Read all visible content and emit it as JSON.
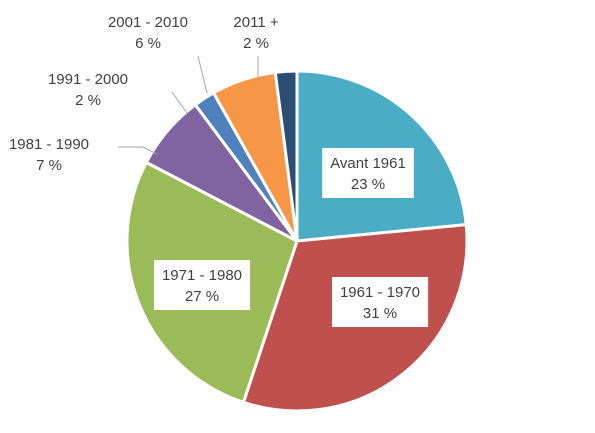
{
  "chart_data": {
    "type": "pie",
    "title": "",
    "legend": "none",
    "slices": [
      {
        "label": "Avant 1961",
        "value": 23,
        "display": "23 %",
        "color": "#4bacc6"
      },
      {
        "label": "1961 - 1970",
        "value": 31,
        "display": "31 %",
        "color": "#c0504d"
      },
      {
        "label": "1971 - 1980",
        "value": 27,
        "display": "27 %",
        "color": "#9bbb59"
      },
      {
        "label": "1981 - 1990",
        "value": 7,
        "display": "7 %",
        "color": "#8064a2"
      },
      {
        "label": "1991 - 2000",
        "value": 2,
        "display": "2 %",
        "color": "#4f81bd"
      },
      {
        "label": "2001 - 2010",
        "value": 6,
        "display": "6 %",
        "color": "#f79646"
      },
      {
        "label": "2011 +",
        "value": 2,
        "display": "2 %",
        "color": "#2c4d75"
      }
    ]
  }
}
